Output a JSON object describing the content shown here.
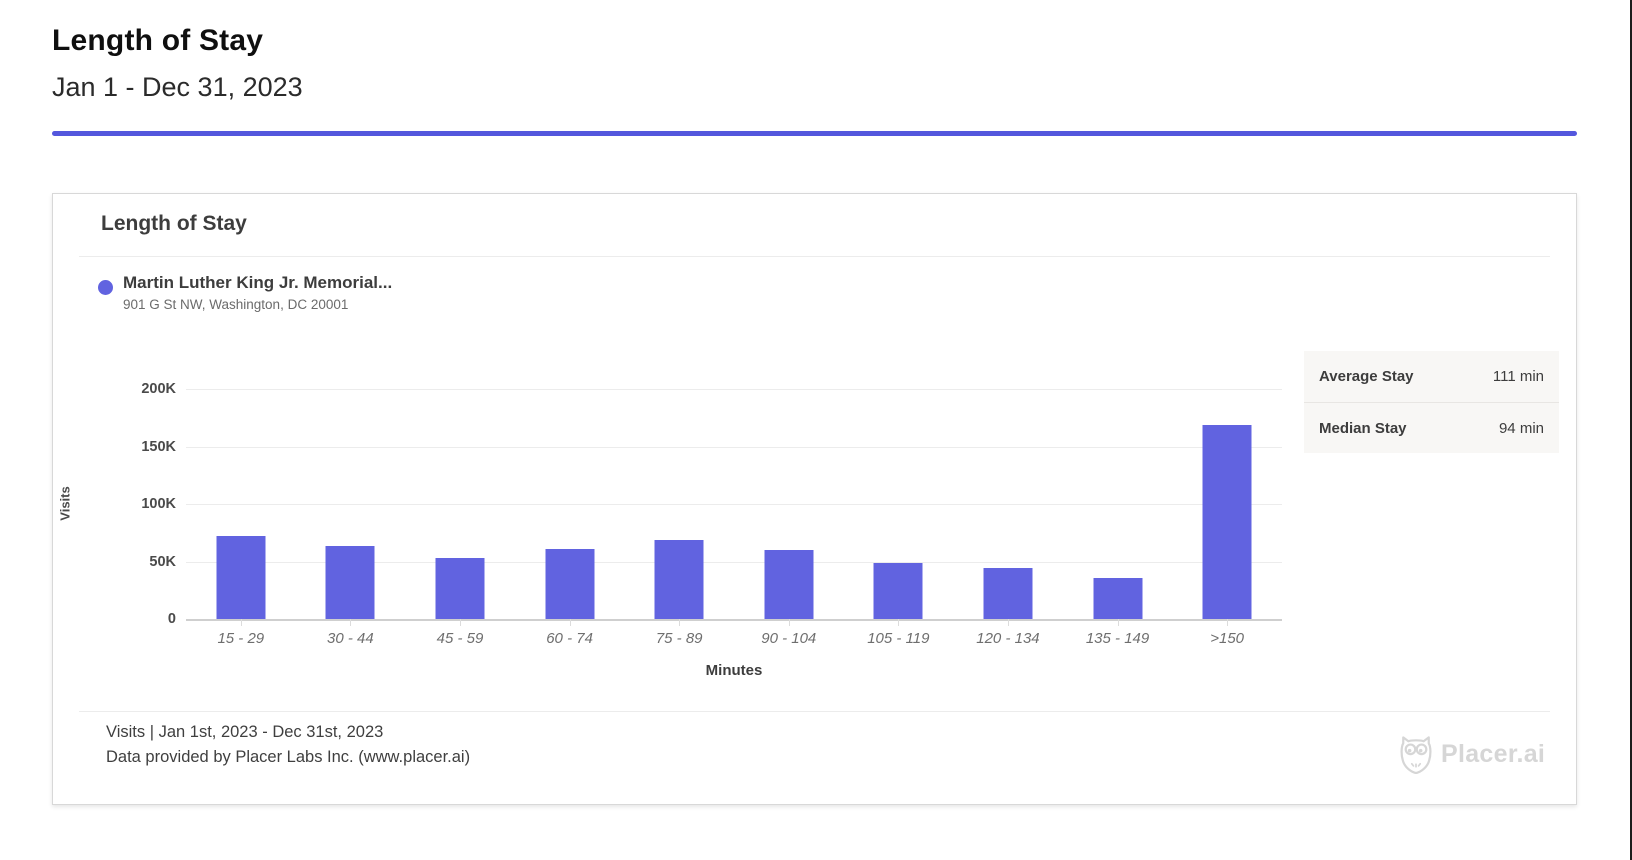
{
  "page": {
    "title": "Length of Stay",
    "subtitle": "Jan 1 - Dec 31, 2023"
  },
  "card": {
    "title": "Length of Stay",
    "legend": {
      "name": "Martin Luther King Jr. Memorial...",
      "address": "901 G St NW, Washington, DC 20001"
    },
    "stats": [
      {
        "label": "Average Stay",
        "value": "111 min"
      },
      {
        "label": "Median Stay",
        "value": "94 min"
      }
    ],
    "footer": {
      "line1": "Visits  |  Jan 1st, 2023 - Dec 31st, 2023",
      "line2": "Data provided by Placer Labs Inc. (www.placer.ai)",
      "logo_icon": "owl-icon",
      "logo_text": "Placer.ai"
    }
  },
  "colors": {
    "accent_divider": "#5457dd",
    "bar": "#6163e0",
    "legend_dot": "#6163e0",
    "logo_gray": "#d6d6d6"
  },
  "chart_data": {
    "type": "bar",
    "title": "Length of Stay",
    "series_name": "Martin Luther King Jr. Memorial...",
    "categories": [
      "15 - 29",
      "30 - 44",
      "45 - 59",
      "60 - 74",
      "75 - 89",
      "90 - 104",
      "105 - 119",
      "120 - 134",
      "135 - 149",
      ">150"
    ],
    "values": [
      72600,
      63100,
      53400,
      60700,
      68500,
      59700,
      48700,
      44100,
      35900,
      168700
    ],
    "xlabel": "Minutes",
    "ylabel": "Visits",
    "yticks": [
      "200K",
      "150K",
      "100K",
      "50K",
      "0"
    ],
    "ytick_values": [
      200000,
      150000,
      100000,
      50000,
      0
    ],
    "ylim": [
      0,
      200000
    ],
    "grid": true,
    "bar_color": "#6163e0",
    "legend_position": "top-left"
  }
}
